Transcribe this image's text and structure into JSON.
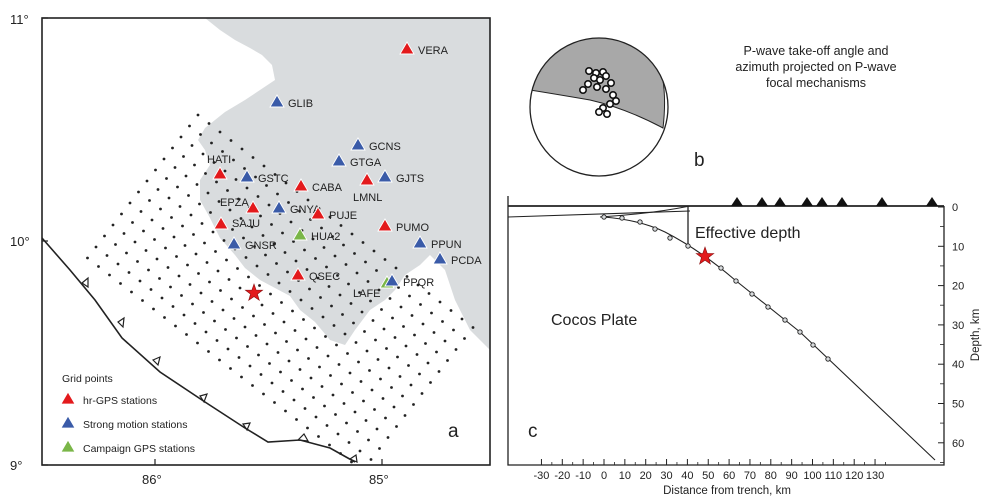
{
  "panel_a": {
    "label": "a",
    "lat_ticks": [
      "11°",
      "10°",
      "9°"
    ],
    "lon_ticks": [
      "86°",
      "85°"
    ],
    "legend": {
      "title": "Grid points",
      "items": [
        {
          "label": "hr-GPS stations",
          "color": "#e31a1c"
        },
        {
          "label": "Strong motion stations",
          "color": "#3a5ba8"
        },
        {
          "label": "Campaign GPS stations",
          "color": "#7ab648"
        }
      ]
    },
    "stations": [
      {
        "name": "VERA",
        "type": "red"
      },
      {
        "name": "GLIB",
        "type": "blue"
      },
      {
        "name": "GCNS",
        "type": "blue"
      },
      {
        "name": "GTGA",
        "type": "blue"
      },
      {
        "name": "GJTS",
        "type": "blue"
      },
      {
        "name": "LMNL",
        "type": "red"
      },
      {
        "name": "HATI",
        "type": "red"
      },
      {
        "name": "GSTC",
        "type": "blue"
      },
      {
        "name": "CABA",
        "type": "red"
      },
      {
        "name": "EPZA",
        "type": "red"
      },
      {
        "name": "GNYA",
        "type": "blue"
      },
      {
        "name": "PUJE",
        "type": "red"
      },
      {
        "name": "SAJU",
        "type": "red"
      },
      {
        "name": "PUMO",
        "type": "red"
      },
      {
        "name": "HUA2",
        "type": "green"
      },
      {
        "name": "GNSR",
        "type": "blue"
      },
      {
        "name": "PPUN",
        "type": "blue"
      },
      {
        "name": "PCDA",
        "type": "blue"
      },
      {
        "name": "QSEC",
        "type": "red"
      },
      {
        "name": "LAFE",
        "type": "green"
      },
      {
        "name": "PPQR",
        "type": "blue"
      }
    ]
  },
  "panel_b": {
    "label": "b",
    "caption_lines": [
      "P-wave take-off angle and",
      "azimuth projected on P-wave",
      "focal mechanisms"
    ]
  },
  "panel_c": {
    "label": "c",
    "title": "Effective depth",
    "plate_label": "Cocos Plate",
    "xlabel": "Distance from trench, km",
    "ylabel": "Depth, km",
    "x_ticks": [
      "-30",
      "-20",
      "-10",
      "0",
      "10",
      "20",
      "30",
      "40",
      "50",
      "60",
      "70",
      "80",
      "90",
      "100",
      "110",
      "120",
      "130"
    ],
    "y_ticks": [
      "0",
      "10",
      "20",
      "30",
      "40",
      "50",
      "60"
    ]
  },
  "colors": {
    "land": "#d9dcde",
    "red": "#e31a1c",
    "blue": "#3a5ba8",
    "green": "#7ab648",
    "shade": "#a8a8a8"
  }
}
